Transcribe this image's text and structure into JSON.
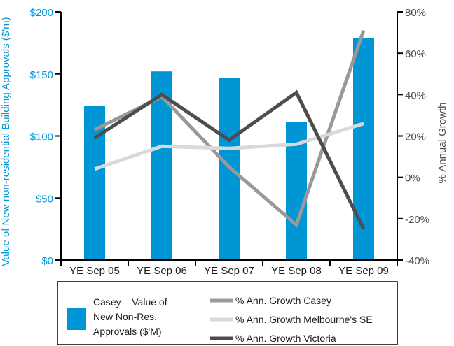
{
  "chart_data": {
    "type": "bar",
    "categories": [
      "YE Sep 05",
      "YE Sep 06",
      "YE Sep 07",
      "YE Sep 08",
      "YE Sep 09"
    ],
    "ylabel": "Value of New non-residential Building Approvals ($'m)",
    "y2label": "% Annual Growth",
    "ylim": [
      0,
      200
    ],
    "y2lim": [
      -40,
      80
    ],
    "yticks": [
      "$0",
      "$50",
      "$100",
      "$150",
      "$200"
    ],
    "y2ticks": [
      "-40%",
      "-20%",
      "0%",
      "20%",
      "40%",
      "60%",
      "80%"
    ],
    "bar_series": {
      "name": "Casey – Value of New Non-Res. Approvals ($'M)",
      "name_lines": [
        "Casey – Value of",
        "New Non-Res.",
        "Approvals ($'M)"
      ],
      "color": "#0096d6",
      "values": [
        124,
        152,
        147,
        111,
        179
      ]
    },
    "line_series": [
      {
        "name": "% Ann. Growth Casey",
        "color": "#999999",
        "values": [
          23,
          39,
          5,
          -23,
          71
        ]
      },
      {
        "name": "% Ann. Growth Melbourne's SE",
        "color": "#d9d9d9",
        "values": [
          4,
          15,
          14,
          16,
          26
        ]
      },
      {
        "name": "% Ann. Growth Victoria",
        "color": "#4d4d4d",
        "values": [
          19,
          40,
          18,
          41,
          -25
        ]
      }
    ],
    "grid": false,
    "legend_position": "bottom"
  }
}
